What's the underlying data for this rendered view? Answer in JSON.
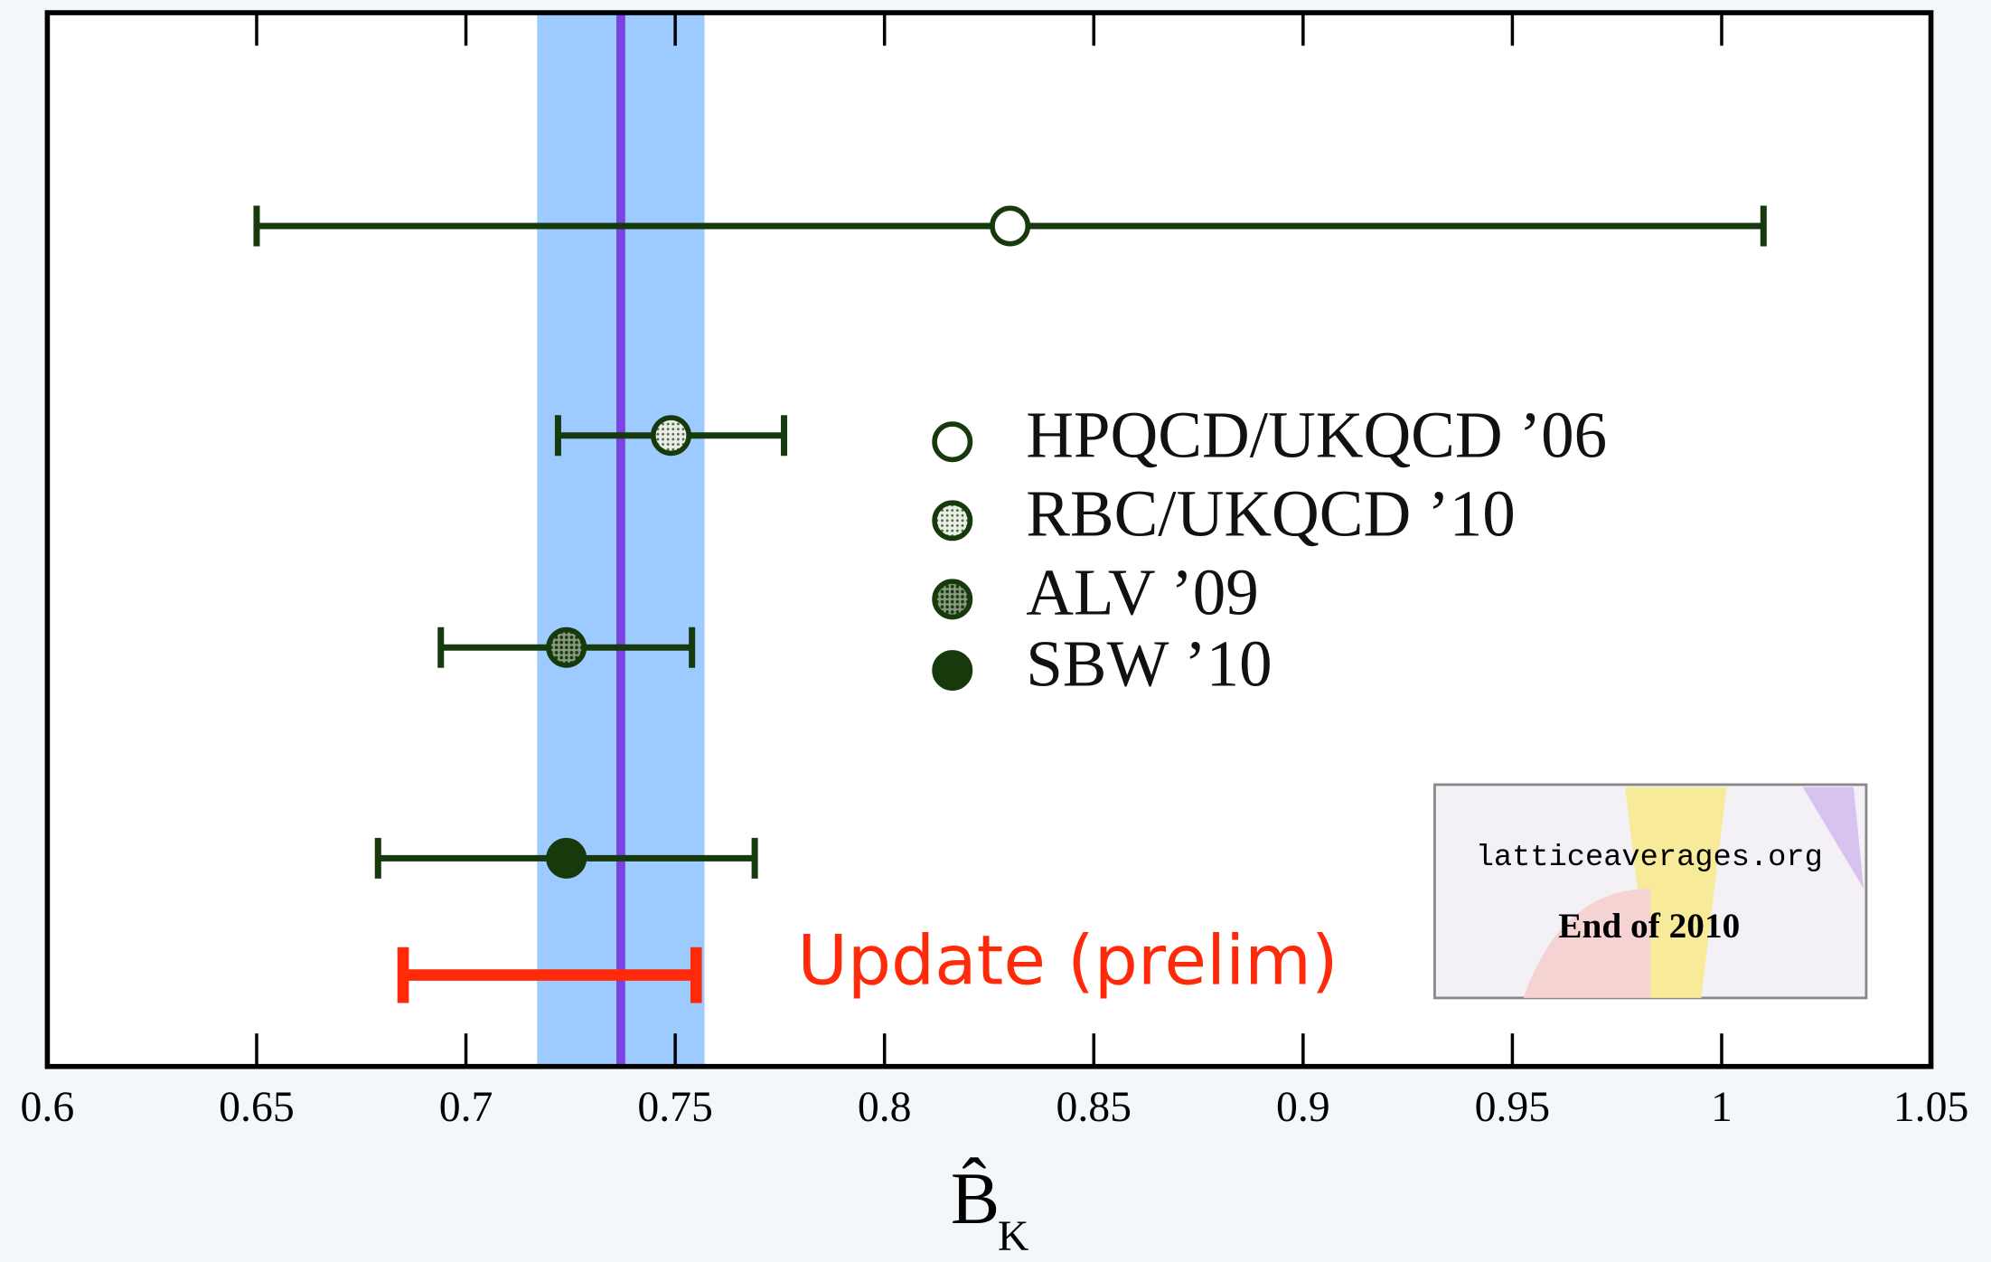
{
  "chart_data": {
    "type": "errorbar",
    "xlim": [
      0.6,
      1.05
    ],
    "xticks": [
      0.6,
      0.65,
      0.7,
      0.75,
      0.8,
      0.85,
      0.9,
      0.95,
      1,
      1.05
    ],
    "xlabel": "B̂",
    "xlabel_subscript": "K",
    "average": {
      "value": 0.737,
      "error": 0.02,
      "band_color": "#9ecbff",
      "line_color": "#7a44e0"
    },
    "series": [
      {
        "name": "HPQCD/UKQCD ’06",
        "value": 0.83,
        "error": 0.18,
        "marker": "open",
        "color": "#163a0c"
      },
      {
        "name": "RBC/UKQCD ’10",
        "value": 0.749,
        "error": 0.027,
        "marker": "dotted-light",
        "color": "#163a0c"
      },
      {
        "name": "ALV ’09",
        "value": 0.724,
        "error": 0.03,
        "marker": "dotted-dark",
        "color": "#163a0c"
      },
      {
        "name": "SBW ’10",
        "value": 0.724,
        "error": 0.045,
        "marker": "filled",
        "color": "#163a0c"
      },
      {
        "name": "Update (prelim)",
        "value": 0.72,
        "error": 0.035,
        "marker": "none",
        "color": "#ff2a0a"
      }
    ],
    "logo": {
      "text": "latticeaverages.org",
      "subtitle": "End of 2010"
    }
  }
}
